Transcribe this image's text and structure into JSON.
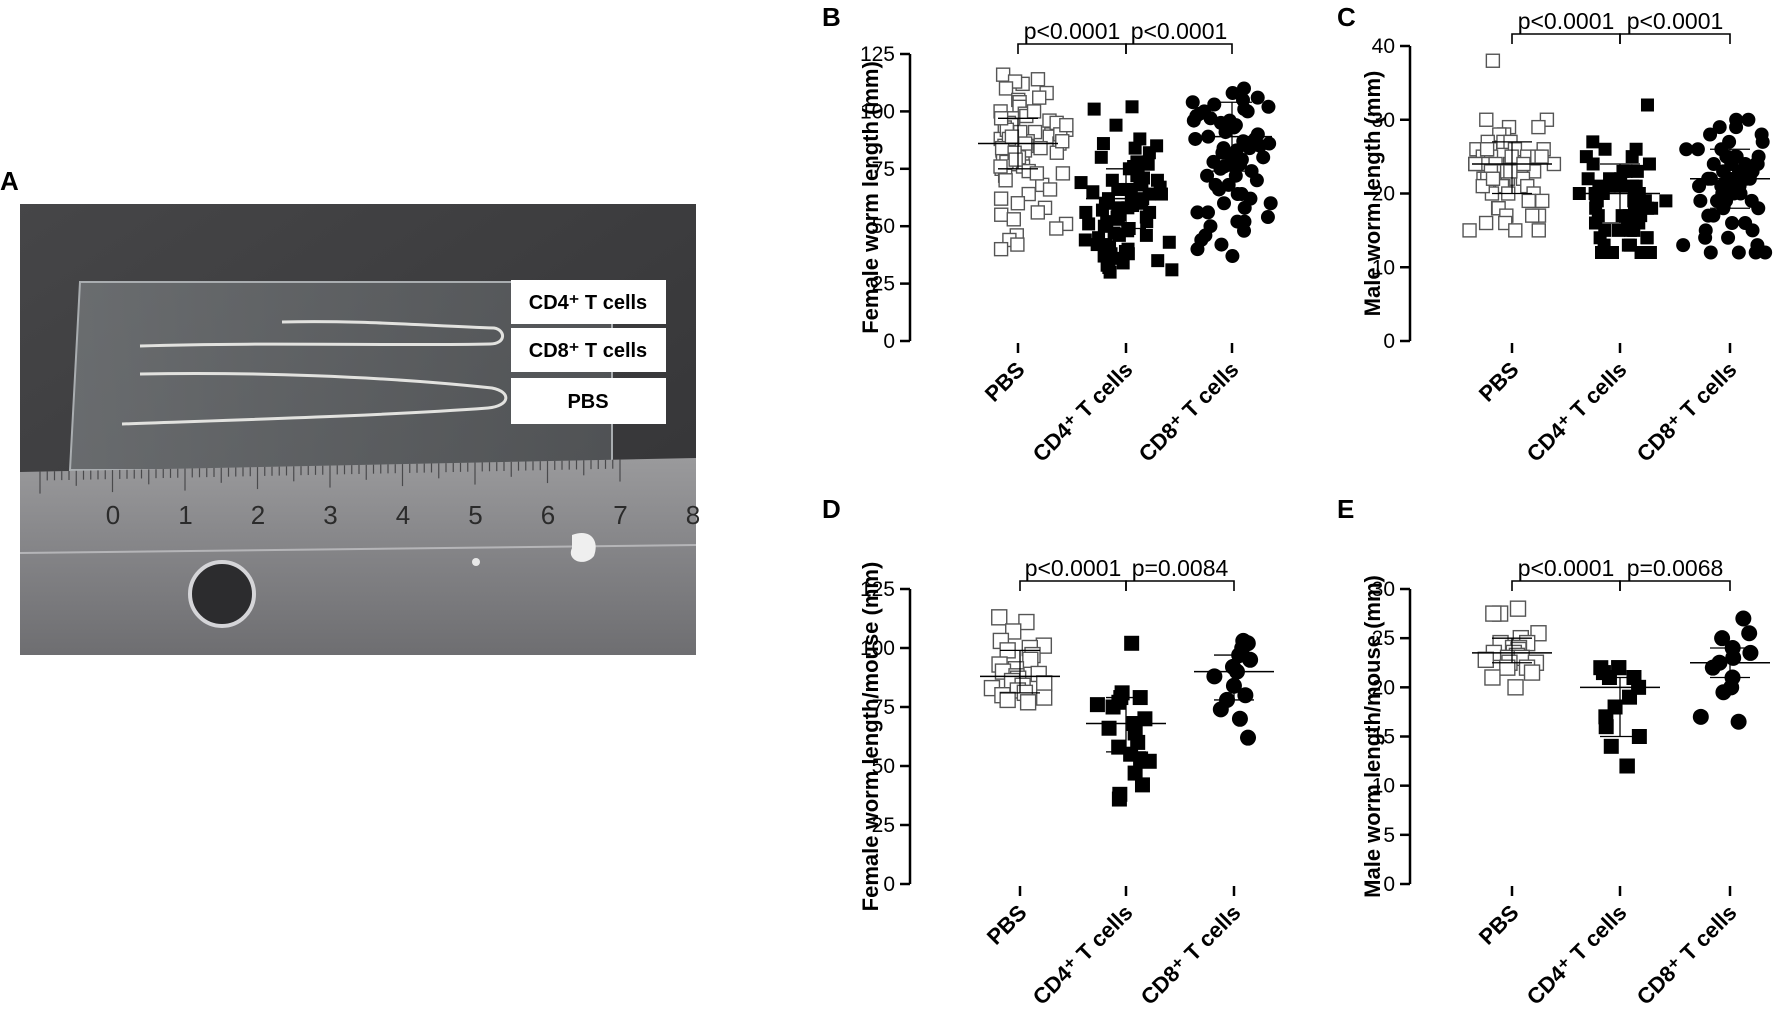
{
  "photo": {
    "panel_letter": "A",
    "labels": [
      "CD4⁺ T cells",
      "CD8⁺ T cells",
      "PBS"
    ],
    "ruler_numbers": [
      "0",
      "1",
      "2",
      "3",
      "4",
      "5",
      "6",
      "7",
      "8"
    ]
  },
  "chart_data": [
    {
      "panel": "B",
      "type": "scatter",
      "categories": [
        "PBS",
        "CD4⁺ T cells",
        "CD8⁺ T cells"
      ],
      "ylabel": "Female worm length (mm)",
      "ylim": [
        0,
        125
      ],
      "yticks": [
        0,
        25,
        50,
        75,
        100,
        125
      ],
      "series": [
        {
          "marker": "open-square",
          "mean": 86,
          "sd_low": 75,
          "sd_high": 97,
          "values": [
            116,
            114,
            112,
            113,
            110,
            108,
            106,
            105,
            104,
            102,
            100,
            99,
            98,
            97,
            96,
            95,
            94,
            93,
            92,
            91,
            90,
            89,
            88,
            87,
            86,
            85,
            84,
            83,
            82,
            81,
            80,
            79,
            78,
            77,
            76,
            75,
            74,
            73,
            72,
            70,
            68,
            66,
            64,
            62,
            60,
            58,
            56,
            55,
            53,
            51,
            49,
            46,
            44,
            42,
            40,
            95,
            92,
            88,
            85,
            83,
            80,
            78,
            90,
            87,
            84,
            100,
            97,
            94,
            91,
            89,
            86,
            82,
            79,
            76,
            73
          ]
        },
        {
          "marker": "filled-square",
          "mean": 62,
          "sd_low": 49,
          "sd_high": 75,
          "values": [
            102,
            101,
            94,
            88,
            86,
            85,
            84,
            82,
            80,
            78,
            77,
            76,
            75,
            74,
            72,
            71,
            70,
            69,
            68,
            67,
            66,
            65,
            64,
            63,
            62,
            61,
            60,
            59,
            58,
            57,
            56,
            55,
            54,
            53,
            52,
            51,
            50,
            49,
            48,
            47,
            46,
            45,
            44,
            43,
            42,
            41,
            40,
            39,
            38,
            37,
            36,
            35,
            34,
            33,
            32,
            31,
            30,
            70,
            66,
            62,
            58,
            54,
            50,
            46,
            42,
            38,
            68,
            64,
            60,
            56,
            52
          ]
        },
        {
          "marker": "filled-circle",
          "mean": 89,
          "sd_low": 74,
          "sd_high": 104,
          "values": [
            110,
            108,
            106,
            105,
            104,
            103,
            102,
            101,
            100,
            99,
            98,
            97,
            96,
            95,
            94,
            93,
            92,
            91,
            90,
            89,
            88,
            87,
            86,
            85,
            84,
            83,
            82,
            81,
            80,
            79,
            78,
            77,
            76,
            75,
            74,
            72,
            70,
            68,
            66,
            64,
            62,
            60,
            58,
            56,
            54,
            52,
            50,
            48,
            46,
            44,
            42,
            40,
            37,
            100,
            96,
            92,
            88,
            84,
            80,
            76,
            72,
            68,
            64,
            60,
            56,
            52
          ]
        }
      ],
      "comparisons": [
        {
          "from": 0,
          "to": 1,
          "label": "p<0.0001"
        },
        {
          "from": 1,
          "to": 2,
          "label": "p<0.0001"
        }
      ]
    },
    {
      "panel": "C",
      "type": "scatter",
      "categories": [
        "PBS",
        "CD4⁺ T cells",
        "CD8⁺ T cells"
      ],
      "ylabel": "Male worm length (mm)",
      "ylim": [
        0,
        40
      ],
      "yticks": [
        0,
        10,
        20,
        30,
        40
      ],
      "series": [
        {
          "marker": "open-square",
          "mean": 24,
          "sd_low": 20,
          "sd_high": 27,
          "values": [
            38,
            30,
            30,
            29,
            29,
            28,
            28,
            27,
            27,
            27,
            26,
            26,
            26,
            26,
            25,
            25,
            25,
            25,
            24,
            24,
            24,
            24,
            24,
            23,
            23,
            23,
            23,
            23,
            22,
            22,
            22,
            22,
            22,
            21,
            21,
            21,
            21,
            20,
            20,
            20,
            19,
            19,
            18,
            18,
            17,
            17,
            17,
            16,
            16,
            15,
            15,
            15,
            26,
            25,
            24,
            23,
            22,
            21,
            25,
            24,
            23,
            22
          ]
        },
        {
          "marker": "filled-square",
          "mean": 20,
          "sd_low": 16,
          "sd_high": 24,
          "values": [
            32,
            27,
            26,
            26,
            25,
            25,
            24,
            24,
            23,
            23,
            23,
            22,
            22,
            22,
            21,
            21,
            21,
            21,
            20,
            20,
            20,
            20,
            20,
            19,
            19,
            19,
            19,
            18,
            18,
            18,
            18,
            17,
            17,
            17,
            16,
            16,
            16,
            15,
            15,
            15,
            14,
            14,
            14,
            13,
            13,
            13,
            12,
            12,
            12,
            12,
            12,
            12,
            21,
            20,
            19,
            18,
            17,
            16,
            15
          ]
        },
        {
          "marker": "filled-circle",
          "mean": 22,
          "sd_low": 18,
          "sd_high": 26,
          "values": [
            30,
            30,
            29,
            29,
            28,
            28,
            27,
            27,
            26,
            26,
            26,
            25,
            25,
            25,
            25,
            24,
            24,
            24,
            24,
            23,
            23,
            23,
            23,
            22,
            22,
            22,
            22,
            21,
            21,
            21,
            21,
            20,
            20,
            20,
            19,
            19,
            19,
            18,
            18,
            17,
            17,
            16,
            16,
            15,
            15,
            14,
            14,
            13,
            13,
            12,
            12,
            12,
            12,
            24,
            23,
            22,
            21,
            20,
            19
          ]
        }
      ],
      "comparisons": [
        {
          "from": 0,
          "to": 1,
          "label": "p<0.0001"
        },
        {
          "from": 1,
          "to": 2,
          "label": "p<0.0001"
        }
      ]
    },
    {
      "panel": "D",
      "type": "scatter",
      "categories": [
        "PBS",
        "CD4⁺ T cells",
        "CD8⁺ T cells"
      ],
      "ylabel": "Female worm length/mouse (mm)",
      "ylim": [
        0,
        125
      ],
      "yticks": [
        0,
        25,
        50,
        75,
        100,
        125
      ],
      "series": [
        {
          "marker": "open-square",
          "mean": 88,
          "sd_low": 81,
          "sd_high": 99,
          "values": [
            113,
            111,
            107,
            103,
            101,
            100,
            99,
            97,
            95,
            93,
            91,
            90,
            89,
            88,
            87,
            86,
            85,
            84,
            83,
            82,
            81,
            80,
            79,
            78,
            77
          ]
        },
        {
          "marker": "filled-square",
          "mean": 68,
          "sd_low": 56,
          "sd_high": 79,
          "values": [
            102,
            81,
            79,
            79,
            77,
            76,
            75,
            70,
            68,
            66,
            64,
            60,
            58,
            55,
            53,
            52,
            47,
            42,
            38,
            36
          ]
        },
        {
          "marker": "filled-circle",
          "mean": 90,
          "sd_low": 78,
          "sd_high": 97,
          "values": [
            103,
            102,
            100,
            97,
            95,
            92,
            90,
            88,
            84,
            80,
            78,
            74,
            70,
            62
          ]
        }
      ],
      "comparisons": [
        {
          "from": 0,
          "to": 1,
          "label": "p<0.0001"
        },
        {
          "from": 1,
          "to": 2,
          "label": "p=0.0084"
        }
      ]
    },
    {
      "panel": "E",
      "type": "scatter",
      "categories": [
        "PBS",
        "CD4⁺ T cells",
        "CD8⁺ T cells"
      ],
      "ylabel": "Male worm length/mouse (mm)",
      "ylim": [
        0,
        30
      ],
      "yticks": [
        0,
        5,
        10,
        15,
        20,
        25,
        30
      ],
      "series": [
        {
          "marker": "open-square",
          "mean": 23.5,
          "sd_low": 22.5,
          "sd_high": 25,
          "values": [
            28,
            27.5,
            27.5,
            25.5,
            25,
            24.5,
            24.5,
            24,
            24,
            23.8,
            23.5,
            23.5,
            23.2,
            23,
            23,
            22.8,
            22.5,
            22.5,
            22,
            22,
            21.5,
            21,
            20
          ]
        },
        {
          "marker": "filled-square",
          "mean": 20,
          "sd_low": 15,
          "sd_high": 21,
          "values": [
            22,
            22,
            22,
            21.5,
            21,
            21,
            20,
            19,
            18,
            17,
            16,
            15,
            14,
            12,
            12
          ]
        },
        {
          "marker": "filled-circle",
          "mean": 22.5,
          "sd_low": 21,
          "sd_high": 24,
          "values": [
            27,
            25.5,
            25,
            24,
            23.5,
            23,
            22.5,
            22,
            21,
            20,
            19.5,
            17,
            16.5
          ]
        }
      ],
      "comparisons": [
        {
          "from": 0,
          "to": 1,
          "label": "p<0.0001"
        },
        {
          "from": 1,
          "to": 2,
          "label": "p=0.0068"
        }
      ]
    }
  ]
}
